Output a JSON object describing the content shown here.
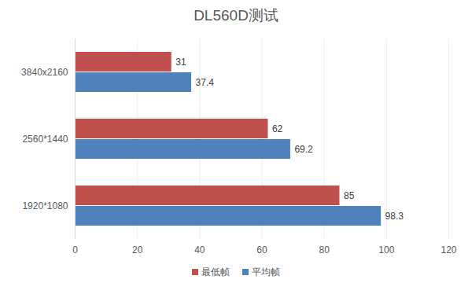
{
  "chart_data": {
    "type": "bar",
    "title": "DL560D测试",
    "orientation": "horizontal",
    "categories": [
      "3840x2160",
      "2560*1440",
      "1920*1080"
    ],
    "series": [
      {
        "name": "最低帧",
        "color": "#c0504d",
        "values": [
          31,
          62,
          85
        ]
      },
      {
        "name": "平均帧",
        "color": "#4f81bd",
        "values": [
          37.4,
          69.2,
          98.3
        ]
      }
    ],
    "xlim": [
      0,
      120
    ],
    "xticks": [
      0,
      20,
      40,
      60,
      80,
      100,
      120
    ],
    "grid": true,
    "data_labels": true,
    "legend": "bottom"
  }
}
